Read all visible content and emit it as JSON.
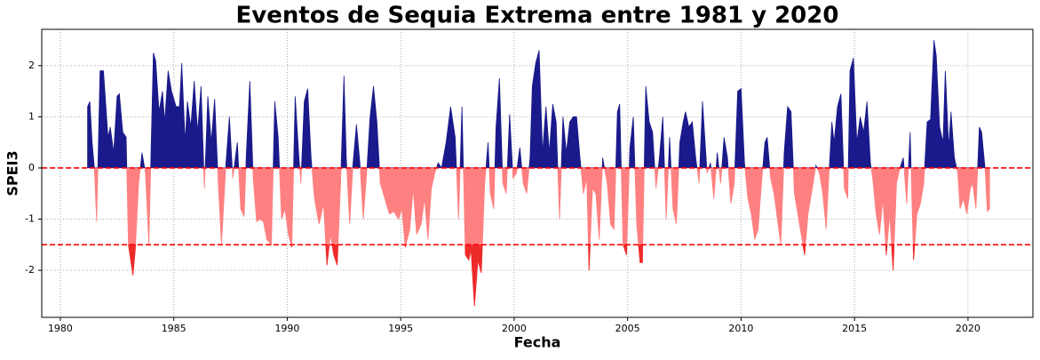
{
  "chart_data": {
    "type": "area",
    "title": "Eventos de Sequia Extrema entre 1981 y 2020",
    "xlabel": "Fecha",
    "ylabel": "SPEI3",
    "x": [
      1981.2,
      1981.3,
      1981.4,
      1981.5,
      1981.6,
      1981.75,
      1981.9,
      1982.1,
      1982.2,
      1982.35,
      1982.5,
      1982.6,
      1982.75,
      1982.9,
      1983.0,
      1983.1,
      1983.2,
      1983.3,
      1983.45,
      1983.6,
      1983.75,
      1983.9,
      1984.1,
      1984.2,
      1984.35,
      1984.5,
      1984.6,
      1984.75,
      1984.9,
      1985.1,
      1985.25,
      1985.35,
      1985.5,
      1985.6,
      1985.75,
      1985.9,
      1986.05,
      1986.2,
      1986.35,
      1986.5,
      1986.65,
      1986.8,
      1986.95,
      1987.1,
      1987.3,
      1987.45,
      1987.6,
      1987.8,
      1987.95,
      1988.1,
      1988.2,
      1988.35,
      1988.5,
      1988.65,
      1988.8,
      1988.95,
      1989.1,
      1989.3,
      1989.45,
      1989.6,
      1989.75,
      1989.9,
      1990.05,
      1990.2,
      1990.35,
      1990.5,
      1990.6,
      1990.75,
      1990.9,
      1991.05,
      1991.2,
      1991.4,
      1991.6,
      1991.75,
      1991.9,
      1992.05,
      1992.2,
      1992.35,
      1992.5,
      1992.6,
      1992.75,
      1992.9,
      1993.05,
      1993.2,
      1993.35,
      1993.5,
      1993.65,
      1993.8,
      1993.95,
      1994.1,
      1994.3,
      1994.5,
      1994.7,
      1994.9,
      1995.05,
      1995.2,
      1995.4,
      1995.55,
      1995.7,
      1995.9,
      1996.05,
      1996.2,
      1996.35,
      1996.5,
      1996.65,
      1996.8,
      1997.0,
      1997.2,
      1997.4,
      1997.55,
      1997.7,
      1997.85,
      1998.0,
      1998.1,
      1998.25,
      1998.4,
      1998.55,
      1998.7,
      1998.85,
      1998.95,
      1999.1,
      1999.2,
      1999.35,
      1999.5,
      1999.65,
      1999.8,
      1999.95,
      2000.1,
      2000.25,
      2000.4,
      2000.55,
      2000.7,
      2000.8,
      2000.95,
      2001.1,
      2001.25,
      2001.4,
      2001.55,
      2001.7,
      2001.85,
      2002.0,
      2002.15,
      2002.3,
      2002.45,
      2002.6,
      2002.75,
      2002.9,
      2003.05,
      2003.2,
      2003.3,
      2003.45,
      2003.6,
      2003.75,
      2003.9,
      2004.1,
      2004.25,
      2004.4,
      2004.55,
      2004.65,
      2004.8,
      2004.95,
      2005.1,
      2005.25,
      2005.4,
      2005.55,
      2005.65,
      2005.8,
      2005.95,
      2006.1,
      2006.25,
      2006.4,
      2006.55,
      2006.7,
      2006.85,
      2007.0,
      2007.15,
      2007.3,
      2007.45,
      2007.55,
      2007.7,
      2007.85,
      2008.0,
      2008.15,
      2008.3,
      2008.5,
      2008.65,
      2008.8,
      2008.95,
      2009.1,
      2009.25,
      2009.4,
      2009.55,
      2009.7,
      2009.85,
      2010.0,
      2010.15,
      2010.3,
      2010.45,
      2010.6,
      2010.75,
      2010.9,
      2011.05,
      2011.15,
      2011.3,
      2011.45,
      2011.6,
      2011.75,
      2011.9,
      2012.05,
      2012.2,
      2012.35,
      2012.5,
      2012.65,
      2012.8,
      2012.95,
      2013.1,
      2013.3,
      2013.45,
      2013.6,
      2013.75,
      2013.85,
      2014.0,
      2014.1,
      2014.25,
      2014.4,
      2014.55,
      2014.7,
      2014.8,
      2014.95,
      2015.1,
      2015.25,
      2015.4,
      2015.55,
      2015.7,
      2015.8,
      2015.95,
      2016.1,
      2016.25,
      2016.4,
      2016.55,
      2016.7,
      2016.85,
      2017.0,
      2017.15,
      2017.3,
      2017.45,
      2017.6,
      2017.75,
      2017.9,
      2018.05,
      2018.2,
      2018.35,
      2018.5,
      2018.6,
      2018.75,
      2018.9,
      2019.0,
      2019.15,
      2019.25,
      2019.4,
      2019.55,
      2019.65,
      2019.8,
      2019.95,
      2020.1,
      2020.2,
      2020.35,
      2020.5,
      2020.6,
      2020.75,
      2020.85,
      2020.95
    ],
    "values": [
      1.2,
      1.3,
      0.5,
      0,
      -1.05,
      1.9,
      1.9,
      0.6,
      0.8,
      0.3,
      1.4,
      1.45,
      0.7,
      0.6,
      -1.5,
      -1.8,
      -2.1,
      -1.6,
      -0.3,
      0.3,
      -0.1,
      -1.5,
      2.25,
      2.1,
      1.1,
      1.5,
      0.9,
      1.9,
      1.5,
      1.2,
      1.2,
      2.05,
      0.5,
      1.3,
      0.8,
      1.7,
      0.7,
      1.6,
      -0.4,
      1.4,
      0.5,
      1.35,
      -0.2,
      -1.5,
      0.1,
      1.0,
      -0.2,
      0.5,
      -0.8,
      -0.95,
      0.3,
      1.7,
      -0.2,
      -1.05,
      -1.0,
      -1.05,
      -1.4,
      -1.5,
      1.3,
      0.6,
      -1.0,
      -0.8,
      -1.3,
      -1.55,
      1.4,
      0.3,
      -0.3,
      1.3,
      1.55,
      0.2,
      -0.6,
      -1.1,
      -0.7,
      -1.9,
      -1.3,
      -1.7,
      -1.9,
      -0.3,
      1.8,
      0.2,
      -1.1,
      0.1,
      0.85,
      0.1,
      -1.0,
      -0.1,
      1.0,
      1.6,
      0.9,
      -0.3,
      -0.6,
      -0.9,
      -0.85,
      -1.0,
      -0.8,
      -1.55,
      -1.2,
      -0.4,
      -1.3,
      -1.1,
      -0.6,
      -1.4,
      -0.4,
      -0.1,
      0.1,
      0.0,
      0.5,
      1.2,
      0.6,
      -1.0,
      1.2,
      -1.7,
      -1.8,
      -1.6,
      -2.7,
      -1.8,
      -2.05,
      -0.3,
      0.5,
      -0.5,
      -0.8,
      0.8,
      1.75,
      -0.3,
      -0.5,
      1.05,
      -0.2,
      -0.1,
      0.4,
      -0.3,
      -0.5,
      0.2,
      1.6,
      2.05,
      2.3,
      0.3,
      1.2,
      0.3,
      1.25,
      0.9,
      -1.0,
      1.0,
      0.3,
      0.9,
      1.0,
      1.0,
      0.2,
      -0.5,
      -0.2,
      -2.0,
      -0.4,
      -0.5,
      -1.4,
      0.2,
      -0.3,
      -1.1,
      -1.2,
      1.1,
      1.25,
      -1.5,
      -1.7,
      0.4,
      1.0,
      -1.1,
      -1.85,
      -1.85,
      1.6,
      0.9,
      0.7,
      -0.4,
      0.2,
      1.0,
      -1.0,
      0.6,
      -0.8,
      -1.1,
      0.5,
      0.9,
      1.1,
      0.8,
      0.9,
      0.2,
      -0.3,
      1.3,
      -0.1,
      0.1,
      -0.6,
      0.3,
      -0.3,
      0.6,
      0.2,
      -0.7,
      -0.3,
      1.5,
      1.55,
      0.1,
      -0.6,
      -0.9,
      -1.4,
      -1.2,
      -0.3,
      0.5,
      0.6,
      -0.2,
      -0.5,
      -1.0,
      -1.5,
      0.3,
      1.2,
      1.1,
      -0.5,
      -0.9,
      -1.3,
      -1.7,
      -0.9,
      -0.5,
      0.05,
      -0.1,
      -0.5,
      -1.2,
      -0.3,
      0.9,
      0.5,
      1.2,
      1.45,
      -0.4,
      -0.6,
      1.9,
      2.15,
      0.5,
      1.0,
      0.7,
      1.3,
      0.1,
      -0.2,
      -0.9,
      -1.3,
      -0.6,
      -1.7,
      -0.9,
      -2.0,
      -0.3,
      0.0,
      0.2,
      -0.7,
      0.7,
      -1.8,
      -0.9,
      -0.7,
      -0.3,
      0.9,
      0.95,
      2.5,
      2.2,
      0.8,
      0.5,
      1.9,
      0.4,
      1.1,
      0.2,
      -0.1,
      -0.8,
      -0.6,
      -0.9,
      -0.4,
      -0.3,
      -0.8,
      0.8,
      0.7,
      0.0,
      -0.85,
      -0.8
    ],
    "colors": {
      "above": "#1a1a8c",
      "below": "#ff8080",
      "extreme": "#ee2b2b"
    },
    "hlines": [
      {
        "value": 0,
        "color": "#ff0000"
      },
      {
        "value": -1.5,
        "color": "#ff0000"
      }
    ],
    "xlim": [
      1979.18,
      2022.86
    ],
    "ylim": [
      -2.92,
      2.71
    ],
    "xticks": [
      1980,
      1985,
      1990,
      1995,
      2000,
      2005,
      2010,
      2015,
      2020
    ],
    "yticks": [
      -2,
      -1,
      0,
      1,
      2
    ],
    "grid": true
  }
}
